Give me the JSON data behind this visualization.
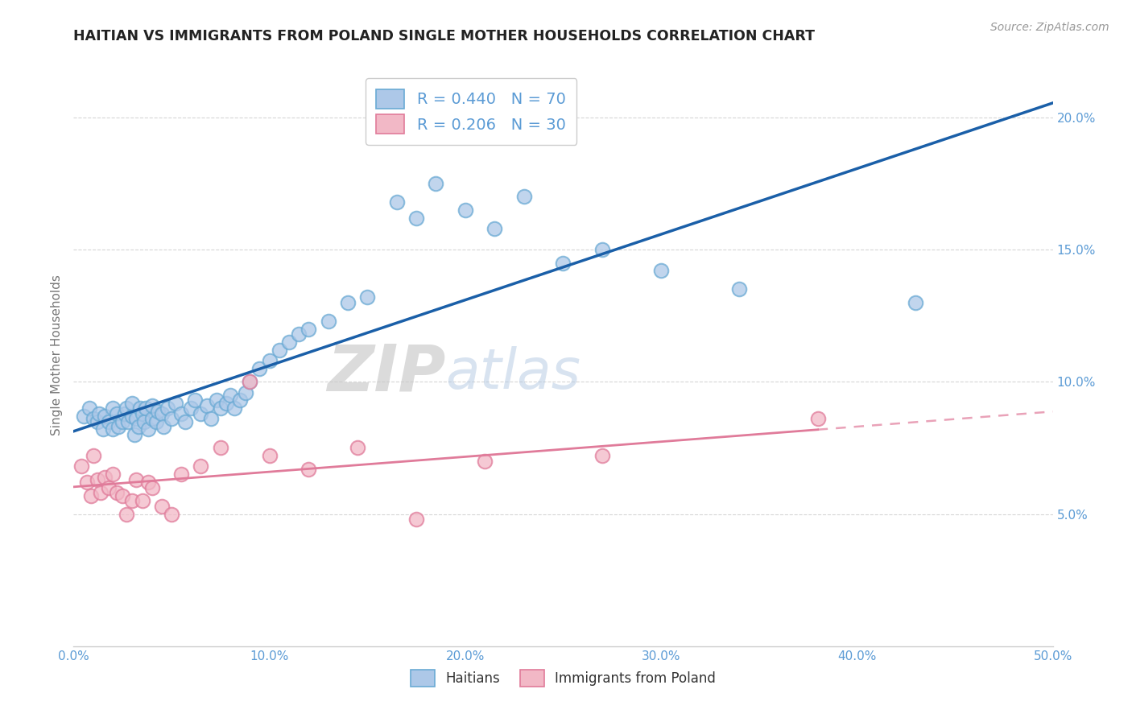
{
  "title": "HAITIAN VS IMMIGRANTS FROM POLAND SINGLE MOTHER HOUSEHOLDS CORRELATION CHART",
  "source": "Source: ZipAtlas.com",
  "ylabel": "Single Mother Households",
  "xlim": [
    0.0,
    0.5
  ],
  "ylim": [
    0.0,
    0.22
  ],
  "xtick_labels": [
    "0.0%",
    "10.0%",
    "20.0%",
    "30.0%",
    "40.0%",
    "50.0%"
  ],
  "xtick_vals": [
    0.0,
    0.1,
    0.2,
    0.3,
    0.4,
    0.5
  ],
  "ytick_labels": [
    "5.0%",
    "10.0%",
    "15.0%",
    "20.0%"
  ],
  "ytick_vals": [
    0.05,
    0.1,
    0.15,
    0.2
  ],
  "haitian_color": "#adc8e8",
  "haitian_edge": "#6aaad4",
  "poland_color": "#f2b8c6",
  "poland_edge": "#e07b9a",
  "blue_line_color": "#1a5fa8",
  "pink_line_color": "#e07b9a",
  "legend_R1": "R = 0.440",
  "legend_N1": "N = 70",
  "legend_R2": "R = 0.206",
  "legend_N2": "N = 30",
  "legend_label1": "Haitians",
  "legend_label2": "Immigrants from Poland",
  "background_color": "#ffffff",
  "grid_color": "#cccccc",
  "haitian_x": [
    0.005,
    0.008,
    0.01,
    0.012,
    0.013,
    0.015,
    0.016,
    0.018,
    0.02,
    0.02,
    0.022,
    0.023,
    0.025,
    0.026,
    0.027,
    0.028,
    0.03,
    0.03,
    0.031,
    0.032,
    0.033,
    0.034,
    0.035,
    0.036,
    0.037,
    0.038,
    0.04,
    0.04,
    0.042,
    0.043,
    0.045,
    0.046,
    0.048,
    0.05,
    0.052,
    0.055,
    0.057,
    0.06,
    0.062,
    0.065,
    0.068,
    0.07,
    0.073,
    0.075,
    0.078,
    0.08,
    0.082,
    0.085,
    0.088,
    0.09,
    0.095,
    0.1,
    0.105,
    0.11,
    0.115,
    0.12,
    0.13,
    0.14,
    0.15,
    0.165,
    0.175,
    0.185,
    0.2,
    0.215,
    0.23,
    0.25,
    0.27,
    0.3,
    0.34,
    0.43
  ],
  "haitian_y": [
    0.087,
    0.09,
    0.086,
    0.085,
    0.088,
    0.082,
    0.087,
    0.085,
    0.082,
    0.09,
    0.088,
    0.083,
    0.085,
    0.088,
    0.09,
    0.085,
    0.087,
    0.092,
    0.08,
    0.086,
    0.083,
    0.09,
    0.088,
    0.085,
    0.09,
    0.082,
    0.086,
    0.091,
    0.085,
    0.089,
    0.088,
    0.083,
    0.09,
    0.086,
    0.092,
    0.088,
    0.085,
    0.09,
    0.093,
    0.088,
    0.091,
    0.086,
    0.093,
    0.09,
    0.092,
    0.095,
    0.09,
    0.093,
    0.096,
    0.1,
    0.105,
    0.108,
    0.112,
    0.115,
    0.118,
    0.12,
    0.123,
    0.13,
    0.132,
    0.168,
    0.162,
    0.175,
    0.165,
    0.158,
    0.17,
    0.145,
    0.15,
    0.142,
    0.135,
    0.13
  ],
  "poland_x": [
    0.004,
    0.007,
    0.009,
    0.01,
    0.012,
    0.014,
    0.016,
    0.018,
    0.02,
    0.022,
    0.025,
    0.027,
    0.03,
    0.032,
    0.035,
    0.038,
    0.04,
    0.045,
    0.05,
    0.055,
    0.065,
    0.075,
    0.09,
    0.1,
    0.12,
    0.145,
    0.175,
    0.21,
    0.27,
    0.38
  ],
  "poland_y": [
    0.068,
    0.062,
    0.057,
    0.072,
    0.063,
    0.058,
    0.064,
    0.06,
    0.065,
    0.058,
    0.057,
    0.05,
    0.055,
    0.063,
    0.055,
    0.062,
    0.06,
    0.053,
    0.05,
    0.065,
    0.068,
    0.075,
    0.1,
    0.072,
    0.067,
    0.075,
    0.048,
    0.07,
    0.072,
    0.086
  ]
}
